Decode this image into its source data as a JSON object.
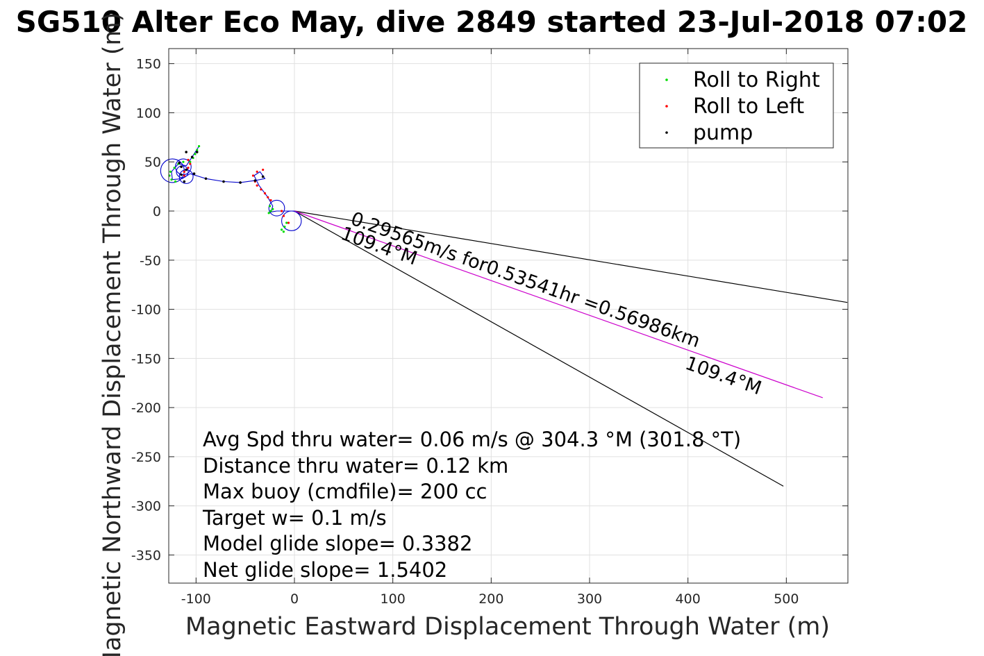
{
  "chart_data": {
    "type": "scatter",
    "title": "SG510 Alter Eco May, dive 2849 started 23-Jul-2018 07:02",
    "xlabel": "Magnetic Eastward Displacement Through Water (m)",
    "ylabel": "Magnetic Northward Displacement Through Water (m)",
    "xlim": [
      -127,
      562
    ],
    "ylim": [
      -379,
      165
    ],
    "xticks": [
      -100,
      0,
      100,
      200,
      300,
      400,
      500
    ],
    "yticks": [
      150,
      100,
      50,
      0,
      -50,
      -100,
      -150,
      -200,
      -250,
      -300,
      -350
    ],
    "grid": true,
    "legend": {
      "position": "top-right",
      "entries": [
        {
          "label": "Roll to Right",
          "color": "#00dd00"
        },
        {
          "label": "Roll to Left",
          "color": "#ff0000"
        },
        {
          "label": "pump",
          "color": "#000000"
        }
      ]
    },
    "series": [
      {
        "name": "Roll to Right",
        "color": "#00dd00",
        "points": [
          [
            -97,
            66
          ],
          [
            -99,
            62
          ],
          [
            -101,
            58
          ],
          [
            -103,
            54
          ],
          [
            -106,
            50
          ],
          [
            -113,
            50
          ],
          [
            -118,
            48
          ],
          [
            -122,
            44
          ],
          [
            -126,
            40
          ],
          [
            -127,
            36
          ],
          [
            -125,
            32
          ],
          [
            -121,
            30
          ],
          [
            -25,
            5
          ],
          [
            -24,
            0
          ],
          [
            -26,
            -2
          ],
          [
            -22,
            2
          ],
          [
            -8,
            -12
          ],
          [
            -10,
            -16
          ],
          [
            -13,
            -19
          ],
          [
            -11,
            -21
          ]
        ]
      },
      {
        "name": "Roll to Left",
        "color": "#ff0000",
        "points": [
          [
            -108,
            52
          ],
          [
            -106,
            48
          ],
          [
            -108,
            44
          ],
          [
            -112,
            40
          ],
          [
            -112,
            36
          ],
          [
            -32,
            42
          ],
          [
            -38,
            40
          ],
          [
            -42,
            36
          ],
          [
            -40,
            30
          ],
          [
            -38,
            26
          ],
          [
            -34,
            22
          ],
          [
            -30,
            18
          ],
          [
            -27,
            14
          ],
          [
            -24,
            11
          ],
          [
            -13,
            0
          ],
          [
            -11,
            -5
          ],
          [
            -6,
            -12
          ]
        ]
      },
      {
        "name": "pump",
        "color": "#000000",
        "points": [
          [
            -117,
            49
          ],
          [
            -115,
            45
          ],
          [
            -110,
            42
          ],
          [
            -115,
            37
          ],
          [
            -112,
            30
          ],
          [
            -104,
            55
          ],
          [
            -99,
            60
          ],
          [
            -110,
            60
          ],
          [
            -102,
            38
          ],
          [
            -90,
            33
          ],
          [
            -72,
            30
          ],
          [
            -55,
            29
          ],
          [
            -40,
            31
          ],
          [
            -32,
            35
          ]
        ]
      }
    ],
    "track": [
      [
        -97,
        66
      ],
      [
        -104,
        55
      ],
      [
        -110,
        46
      ],
      [
        -118,
        48
      ],
      [
        -125,
        40
      ],
      [
        -124,
        32
      ],
      [
        -114,
        33
      ],
      [
        -106,
        38
      ],
      [
        -90,
        33
      ],
      [
        -72,
        30
      ],
      [
        -55,
        29
      ],
      [
        -40,
        31
      ],
      [
        -30,
        33
      ],
      [
        -35,
        40
      ],
      [
        -41,
        36
      ],
      [
        -36,
        26
      ],
      [
        -27,
        14
      ],
      [
        -22,
        5
      ],
      [
        -24,
        -1
      ],
      [
        -18,
        0
      ],
      [
        -8,
        0
      ],
      [
        0,
        0
      ]
    ],
    "loops": [
      [
        -124,
        41,
        12
      ],
      [
        -113,
        45,
        8
      ],
      [
        -114,
        40,
        6
      ],
      [
        -110,
        35,
        7
      ],
      [
        -18,
        3,
        8
      ],
      [
        -3,
        -10,
        10
      ]
    ],
    "lines": [
      {
        "name": "upper bound",
        "color": "#000000",
        "points": [
          [
            0,
            0
          ],
          [
            562,
            -93
          ]
        ]
      },
      {
        "name": "lower bound",
        "color": "#000000",
        "points": [
          [
            0,
            0
          ],
          [
            497,
            -280
          ]
        ]
      },
      {
        "name": "heading",
        "color": "#cc00cc",
        "points": [
          [
            0,
            0
          ],
          [
            537,
            -190
          ]
        ]
      }
    ],
    "annotations": [
      {
        "text": "0.29565m/s for0.53541hr =0.56986km",
        "x": 56,
        "y": -13,
        "rotation": 19.6
      },
      {
        "text": "109.4°M",
        "x": 46,
        "y": -28,
        "rotation": 19.6
      },
      {
        "text": "109.4°M",
        "x": 396,
        "y": -160,
        "rotation": 19.6
      }
    ],
    "info_lines": [
      "Avg Spd thru water=  0.06 m/s @ 304.3 °M (301.8 °T)",
      "Distance thru water=  0.12 km",
      "Max buoy (cmdfile)= 200 cc",
      "Target w= 0.1 m/s",
      "Model glide slope= 0.3382",
      "Net glide slope= 1.5402"
    ]
  }
}
